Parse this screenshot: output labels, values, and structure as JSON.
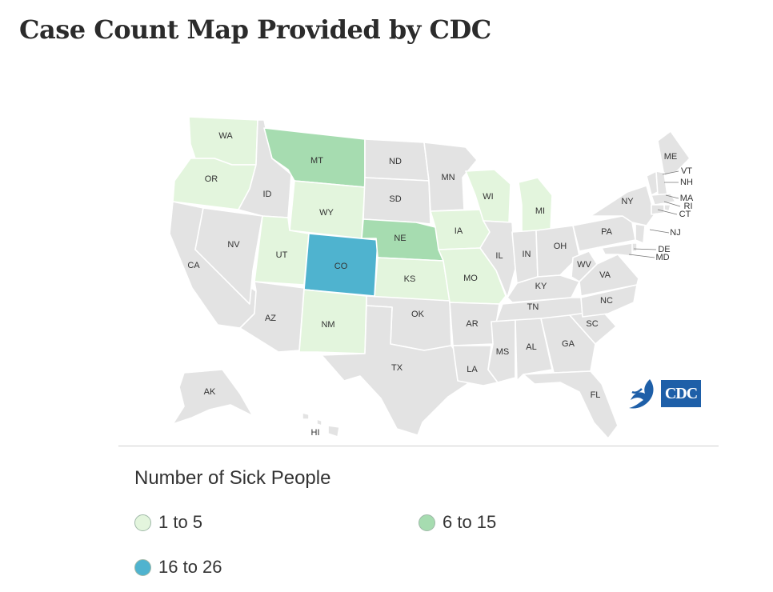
{
  "page": {
    "title": "Case Count Map Provided by CDC"
  },
  "colors": {
    "none": "#e3e3e3",
    "tier1": "#e3f5dd",
    "tier2": "#a6dcb0",
    "tier3": "#4fb3cf",
    "background": "#ffffff"
  },
  "legend": {
    "title": "Number of Sick People",
    "items": [
      {
        "label": "1 to 5",
        "tier": "tier1"
      },
      {
        "label": "6 to 15",
        "tier": "tier2"
      },
      {
        "label": "16 to 26",
        "tier": "tier3"
      }
    ]
  },
  "logo": {
    "text": "CDC"
  },
  "states": {
    "WA": "tier1",
    "OR": "tier1",
    "CA": "none",
    "ID": "none",
    "NV": "none",
    "MT": "tier2",
    "WY": "tier1",
    "UT": "tier1",
    "AZ": "none",
    "CO": "tier3",
    "NM": "tier1",
    "ND": "none",
    "SD": "none",
    "NE": "tier2",
    "KS": "tier1",
    "OK": "none",
    "TX": "none",
    "MN": "none",
    "IA": "tier1",
    "MO": "tier1",
    "AR": "none",
    "LA": "none",
    "WI": "tier1",
    "IL": "none",
    "MI": "tier1",
    "IN": "none",
    "OH": "none",
    "KY": "none",
    "TN": "none",
    "MS": "none",
    "AL": "none",
    "GA": "none",
    "FL": "none",
    "SC": "none",
    "NC": "none",
    "VA": "none",
    "WV": "none",
    "PA": "none",
    "NY": "none",
    "ME": "none",
    "VT": "none",
    "NH": "none",
    "MA": "none",
    "RI": "none",
    "CT": "none",
    "NJ": "none",
    "DE": "none",
    "MD": "none",
    "AK": "none",
    "HI": "none"
  }
}
